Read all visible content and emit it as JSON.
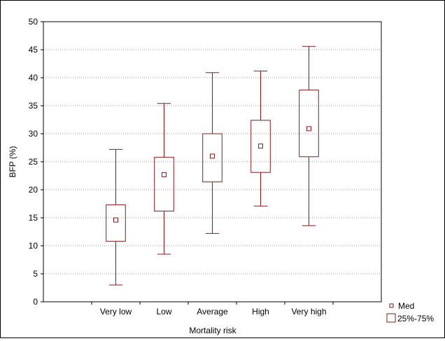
{
  "chart_data": {
    "type": "box",
    "xlabel": "Mortality risk",
    "ylabel": "BFP (%)",
    "ylim": [
      0,
      50
    ],
    "yticks": [
      0,
      5,
      10,
      15,
      20,
      25,
      30,
      35,
      40,
      45,
      50
    ],
    "grid": true,
    "legend_position": "bottom-right",
    "legend": {
      "median_label": "Med",
      "box_label": "25%-75%"
    },
    "categories": [
      "Very low",
      "Low",
      "Average",
      "High",
      "Very high"
    ],
    "boxes": [
      {
        "category": "Very low",
        "min": 3.0,
        "q1": 10.8,
        "median": 14.6,
        "q3": 17.3,
        "max": 27.2
      },
      {
        "category": "Low",
        "min": 8.5,
        "q1": 16.2,
        "median": 22.7,
        "q3": 25.8,
        "max": 35.4
      },
      {
        "category": "Average",
        "min": 12.2,
        "q1": 21.4,
        "median": 26.0,
        "q3": 30.0,
        "max": 40.9
      },
      {
        "category": "High",
        "min": 17.1,
        "q1": 23.1,
        "median": 27.8,
        "q3": 32.4,
        "max": 41.2
      },
      {
        "category": "Very high",
        "min": 13.6,
        "q1": 25.9,
        "median": 30.9,
        "q3": 37.8,
        "max": 45.6
      }
    ],
    "colors": {
      "box": "#8b1a1a",
      "grid": "#9a9a9a",
      "axis": "#000000"
    }
  }
}
